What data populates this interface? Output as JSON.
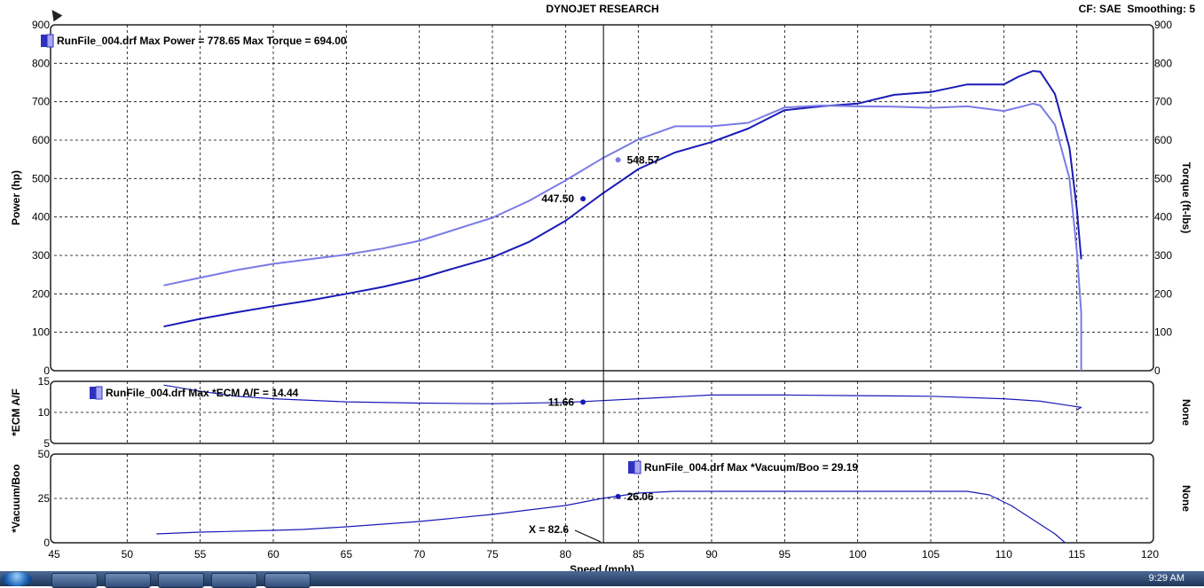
{
  "header": {
    "title": "DYNOJET RESEARCH",
    "right_info": "CF: SAE  Smoothing: 5"
  },
  "taskbar": {
    "clock": "9:29 AM"
  },
  "chart_data": [
    {
      "type": "line",
      "panel": "power-torque",
      "legend": "RunFile_004.drf Max Power = 778.65 Max Torque = 694.00",
      "ylabel": "Power (hp)",
      "ylabel_right": "Torque (ft-lbs)",
      "ylim": [
        0,
        900
      ],
      "yticks": [
        0,
        100,
        200,
        300,
        400,
        500,
        600,
        700,
        800,
        900
      ],
      "xlim": [
        45,
        120
      ],
      "series": [
        {
          "axis": "left",
          "color": "#1a1ab8",
          "x": [
            52.5,
            55,
            57.5,
            60,
            62.5,
            65,
            67.5,
            70,
            72.5,
            75,
            77.5,
            80,
            82.5,
            85,
            87.5,
            90,
            92.5,
            95,
            97.5,
            100,
            102.5,
            105,
            107.5,
            110,
            111,
            112,
            112.5,
            113.5,
            114.5,
            115,
            115.3
          ],
          "y": [
            115,
            135,
            152,
            168,
            183,
            200,
            218,
            240,
            268,
            295,
            335,
            390,
            460,
            525,
            568,
            595,
            630,
            678,
            688,
            695,
            718,
            725,
            745,
            745,
            765,
            780,
            778,
            720,
            580,
            420,
            290
          ]
        },
        {
          "axis": "right",
          "color": "#7a7ae6",
          "x": [
            52.5,
            55,
            57.5,
            60,
            62.5,
            65,
            67.5,
            70,
            72.5,
            75,
            77.5,
            80,
            82.5,
            85,
            87.5,
            90,
            92.5,
            95,
            97.5,
            100,
            102.5,
            105,
            107.5,
            110,
            111,
            112,
            112.5,
            113.5,
            114.5,
            115,
            115.3,
            115.3
          ],
          "y": [
            222,
            242,
            262,
            278,
            290,
            302,
            318,
            338,
            368,
            398,
            442,
            495,
            552,
            602,
            636,
            636,
            645,
            685,
            690,
            688,
            687,
            684,
            688,
            676,
            685,
            695,
            690,
            640,
            500,
            310,
            150,
            0
          ]
        }
      ],
      "annotations": [
        {
          "x": 81.2,
          "y": 447.5,
          "label": "447.50",
          "side": "left",
          "color": "#1a1ab8"
        },
        {
          "x": 83.6,
          "y": 548.57,
          "label": "548.57",
          "side": "right",
          "color": "#7a7ae6"
        }
      ]
    },
    {
      "type": "line",
      "panel": "air-fuel",
      "legend": "RunFile_004.drf Max *ECM A/F = 14.44",
      "ylabel": "*ECM A/F",
      "ylabel_right": "None",
      "ylim": [
        5,
        15
      ],
      "yticks": [
        5,
        10,
        15
      ],
      "xlim": [
        45,
        120
      ],
      "series": [
        {
          "axis": "left",
          "color": "#1a1ab8",
          "x": [
            52.5,
            55,
            57.5,
            60,
            65,
            70,
            75,
            80,
            85,
            90,
            95,
            100,
            105,
            110,
            112.5,
            114.5,
            115.3,
            115
          ],
          "y": [
            14.4,
            13.4,
            12.6,
            12.2,
            11.7,
            11.5,
            11.4,
            11.6,
            12.2,
            12.8,
            12.8,
            12.7,
            12.6,
            12.2,
            11.8,
            11.1,
            10.8,
            10.4
          ]
        }
      ],
      "annotations": [
        {
          "x": 81.2,
          "y": 11.66,
          "label": "11.66",
          "side": "left",
          "color": "#1a1ab8"
        }
      ]
    },
    {
      "type": "line",
      "panel": "vacuum-boost",
      "legend": "RunFile_004.drf Max *Vacuum/Boo = 29.19",
      "ylabel": "*Vacuum/Boo",
      "ylabel_right": "None",
      "xlabel": "Speed (mph)",
      "ylim": [
        0,
        50
      ],
      "yticks": [
        0,
        25,
        50
      ],
      "xlim": [
        45,
        120
      ],
      "xticks": [
        45,
        50,
        55,
        60,
        65,
        70,
        75,
        80,
        85,
        90,
        95,
        100,
        105,
        110,
        115,
        120
      ],
      "series": [
        {
          "axis": "left",
          "color": "#1a1ab8",
          "x": [
            52,
            55,
            60,
            62,
            65,
            70,
            75,
            80,
            82.5,
            85,
            87.5,
            90,
            95,
            100,
            105,
            107.5,
            109,
            110.5,
            112,
            113.5,
            114.2
          ],
          "y": [
            5,
            6,
            7,
            7.5,
            9,
            12,
            16,
            21,
            25,
            28,
            29,
            29,
            29,
            29,
            29,
            29,
            27,
            21,
            13,
            5,
            0
          ]
        }
      ],
      "annotations": [
        {
          "x": 83.6,
          "y": 26.06,
          "label": "26.06",
          "side": "right",
          "color": "#1a1ab8"
        }
      ],
      "cursor_readout": "X = 82.6"
    }
  ]
}
